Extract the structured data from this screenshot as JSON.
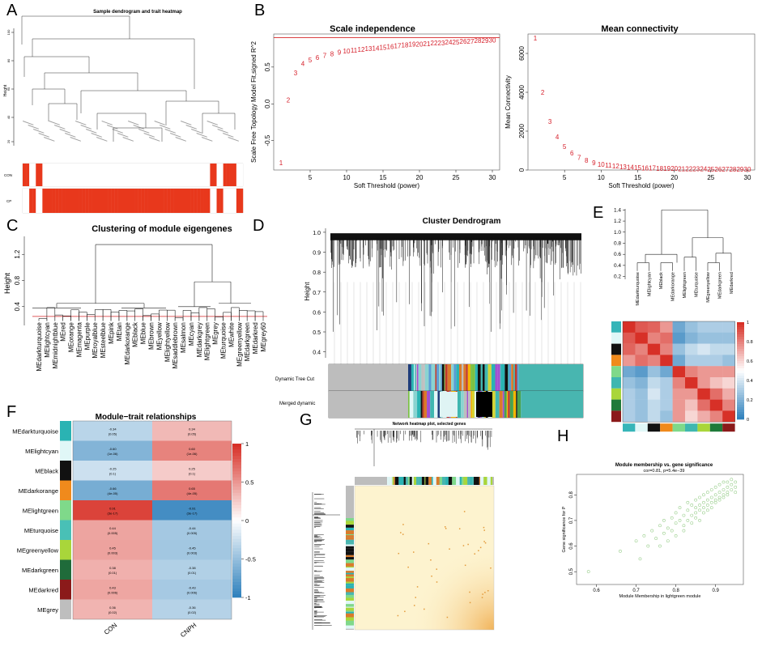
{
  "panels": {
    "A": {
      "letter": "A",
      "title": "Sample dendrogram and trait heatmap",
      "ylabel": "Height",
      "yticks": [
        "100",
        "80",
        "60",
        "40",
        "20"
      ],
      "traits": [
        "CON",
        "CP"
      ],
      "trait_pattern_con": [
        1,
        1,
        0,
        0,
        1,
        1,
        0,
        0,
        0,
        0,
        0,
        0,
        0,
        0,
        0,
        0,
        0,
        0,
        0,
        0,
        0,
        0,
        0,
        0,
        0,
        0,
        0,
        0,
        0,
        0,
        0,
        0,
        0,
        0,
        0,
        0,
        0,
        0,
        0,
        0,
        0,
        0,
        0,
        0,
        0,
        0,
        0,
        0,
        0,
        0,
        0,
        0,
        0,
        0,
        0,
        0,
        0,
        1,
        1,
        0,
        0,
        1,
        1,
        1,
        1,
        0,
        0
      ],
      "colors": {
        "high": "#e8381c",
        "low": "#ffffff"
      }
    },
    "B": {
      "letter": "B",
      "scale_title": "Scale independence",
      "scale_ylabel": "Scale Free Topology Model Fit,signed R^2",
      "conn_title": "Mean connectivity",
      "conn_ylabel": "Mean Connectivity",
      "xlabel": "Soft Threshold (power)",
      "xticks": [
        "5",
        "10",
        "15",
        "20",
        "25",
        "30"
      ],
      "scale_yticks": [
        "0.5",
        "0.0",
        "-0.5"
      ],
      "conn_yticks": [
        "6000",
        "4000",
        "2000",
        "0"
      ]
    },
    "C": {
      "letter": "C",
      "title": "Clustering of module eigengenes",
      "ylabel": "Height",
      "yticks": [
        "1.2",
        "0.8",
        "0.4"
      ],
      "leaves": [
        "MEdarkturquoise",
        "MElightcyan",
        "MEmidnightblue",
        "MEred",
        "MEorange",
        "MEmagenta",
        "MEpurple",
        "MEroyalblue",
        "MEsteelblue",
        "MEpink",
        "MEtan",
        "MEdarkorange",
        "MEblack",
        "MEblue",
        "MEbrown",
        "MEyellow",
        "MElightyellow",
        "MEsaddlebrown",
        "MEsalmon",
        "MEcyan",
        "MEdarkgrey",
        "MElightgreen",
        "MEgrey",
        "MEturquoise",
        "MEwhite",
        "MEgreenyellow",
        "MEdarkgreen",
        "MEdarkred",
        "MEgrey60"
      ]
    },
    "D": {
      "letter": "D",
      "title": "Cluster Dendrogram",
      "ylabel": "Height",
      "yticks": [
        "1.0",
        "0.9",
        "0.8",
        "0.7",
        "0.6",
        "0.5",
        "0.4"
      ],
      "row1": "Dynamic Tree Cut",
      "row2": "Merged dynamic"
    },
    "E": {
      "letter": "E",
      "yticks": [
        "1.4",
        "1.2",
        "1.0",
        "0.8",
        "0.6",
        "0.4",
        "0.2"
      ],
      "leaves": [
        "MEdarkturquoise",
        "MElightcyan",
        "MEblack",
        "MEdarkorange",
        "MElightgreen",
        "MEturquoise",
        "MEgreenyellow",
        "MEdarkgreen",
        "MEdarkred"
      ],
      "legend_ticks": [
        "1",
        "0.8",
        "0.6",
        "0.4",
        "0.2",
        "0"
      ],
      "side_colors": [
        "#36b5b8",
        "#e0f7f7",
        "#111111",
        "#f08a1c",
        "#7fd98a",
        "#3fb7b0",
        "#a9d63a",
        "#1f7a3a",
        "#8b1a1a"
      ]
    },
    "F": {
      "letter": "F",
      "title": "Module−trait relationships",
      "columns": [
        "CON",
        "CNPH"
      ],
      "legend_ticks": [
        "1",
        "0.5",
        "0",
        "-0.5",
        "-1"
      ],
      "rows": [
        {
          "name": "MEdarkturquoise",
          "color": "#2ab3b3",
          "con": "-0.34\n(0.05)",
          "cp": "0.34\n(0.05)",
          "vcon": -0.34,
          "vcp": 0.34
        },
        {
          "name": "MElightcyan",
          "color": "#e0f7f7",
          "con": "-0.60\n(1e-06)",
          "cp": "0.60\n(1e-06)",
          "vcon": -0.6,
          "vcp": 0.6
        },
        {
          "name": "MEblack",
          "color": "#111111",
          "con": "-0.25\n(0.1)",
          "cp": "0.25\n(0.1)",
          "vcon": -0.25,
          "vcp": 0.25
        },
        {
          "name": "MEdarkorange",
          "color": "#f08a1c",
          "con": "-0.66\n(4e-05)",
          "cp": "0.65\n(4e-05)",
          "vcon": -0.66,
          "vcp": 0.65
        },
        {
          "name": "MElightgreen",
          "color": "#7fd98a",
          "con": "0.91\n(3e-17)",
          "cp": "-0.91\n(3e-17)",
          "vcon": 0.91,
          "vcp": -0.91
        },
        {
          "name": "MEturquoise",
          "color": "#49c0b6",
          "con": "0.44\n(0.005)",
          "cp": "-0.44\n(0.005)",
          "vcon": 0.44,
          "vcp": -0.44
        },
        {
          "name": "MEgreenyellow",
          "color": "#a9d63a",
          "con": "0.45\n(0.003)",
          "cp": "-0.45\n(0.003)",
          "vcon": 0.45,
          "vcp": -0.45
        },
        {
          "name": "MEdarkgreen",
          "color": "#1f6b3a",
          "con": "0.38\n(0.01)",
          "cp": "-0.38\n(0.01)",
          "vcon": 0.38,
          "vcp": -0.38
        },
        {
          "name": "MEdarkred",
          "color": "#8b1a1a",
          "con": "0.43\n(0.006)",
          "cp": "-0.43\n(0.006)",
          "vcon": 0.43,
          "vcp": -0.43
        },
        {
          "name": "MEgrey",
          "color": "#bebebe",
          "con": "0.36\n(0.02)",
          "cp": "-0.36\n(0.02)",
          "vcon": 0.36,
          "vcp": -0.36
        }
      ]
    },
    "G": {
      "letter": "G",
      "title": "Network heatmap plot, selected genes"
    },
    "H": {
      "letter": "H",
      "title": "Module membership vs. gene significance",
      "subtitle": "cor=0.81, p=5.4e−39",
      "xlabel": "Module Membership in lightgreen module",
      "ylabel": "Gene significance for P",
      "xticks": [
        "0.6",
        "0.7",
        "0.8",
        "0.9"
      ],
      "yticks": [
        "0.8",
        "0.7",
        "0.6",
        "0.5"
      ]
    }
  },
  "chart_data": [
    {
      "type": "scatter",
      "title": "Scale independence",
      "xlabel": "Soft Threshold (power)",
      "ylabel": "Scale Free Topology Model Fit,signed R^2",
      "x": [
        1,
        2,
        3,
        4,
        5,
        6,
        7,
        8,
        9,
        10,
        11,
        12,
        13,
        14,
        15,
        16,
        17,
        18,
        19,
        20,
        21,
        22,
        23,
        24,
        25,
        26,
        27,
        28,
        29,
        30
      ],
      "y": [
        -0.8,
        0.05,
        0.42,
        0.55,
        0.6,
        0.63,
        0.66,
        0.68,
        0.7,
        0.72,
        0.73,
        0.74,
        0.75,
        0.76,
        0.77,
        0.78,
        0.79,
        0.8,
        0.81,
        0.81,
        0.82,
        0.83,
        0.83,
        0.84,
        0.84,
        0.85,
        0.85,
        0.86,
        0.86,
        0.87
      ],
      "xlim": [
        0,
        31
      ],
      "ylim": [
        -0.9,
        0.95
      ],
      "hline": 0.9,
      "labels_as_points": true
    },
    {
      "type": "scatter",
      "title": "Mean connectivity",
      "xlabel": "Soft Threshold (power)",
      "ylabel": "Mean Connectivity",
      "x": [
        1,
        2,
        3,
        4,
        5,
        6,
        7,
        8,
        9,
        10,
        11,
        12,
        13,
        14,
        15,
        16,
        17,
        18,
        19,
        20,
        21,
        22,
        23,
        24,
        25,
        26,
        27,
        28,
        29,
        30
      ],
      "y": [
        6800,
        4000,
        2500,
        1700,
        1200,
        880,
        650,
        490,
        380,
        300,
        240,
        200,
        170,
        145,
        125,
        110,
        98,
        88,
        80,
        73,
        67,
        62,
        58,
        54,
        51,
        48,
        45,
        43,
        41,
        39
      ],
      "xlim": [
        0,
        31
      ],
      "ylim": [
        0,
        7000
      ],
      "labels_as_points": true
    },
    {
      "type": "scatter",
      "title": "Module membership vs. gene significance",
      "xlabel": "Module Membership in lightgreen module",
      "ylabel": "Gene significance for P",
      "xlim": [
        0.55,
        0.97
      ],
      "ylim": [
        0.45,
        0.88
      ],
      "cor": 0.81,
      "p": "5.4e-39",
      "x": [
        0.58,
        0.66,
        0.7,
        0.71,
        0.72,
        0.73,
        0.74,
        0.75,
        0.76,
        0.76,
        0.77,
        0.77,
        0.78,
        0.78,
        0.79,
        0.79,
        0.8,
        0.8,
        0.8,
        0.81,
        0.81,
        0.82,
        0.82,
        0.82,
        0.83,
        0.83,
        0.83,
        0.84,
        0.84,
        0.84,
        0.85,
        0.85,
        0.85,
        0.85,
        0.86,
        0.86,
        0.86,
        0.86,
        0.87,
        0.87,
        0.87,
        0.87,
        0.88,
        0.88,
        0.88,
        0.88,
        0.89,
        0.89,
        0.89,
        0.89,
        0.9,
        0.9,
        0.9,
        0.9,
        0.91,
        0.91,
        0.91,
        0.91,
        0.92,
        0.92,
        0.92,
        0.92,
        0.93,
        0.93,
        0.93,
        0.93,
        0.94,
        0.94,
        0.94,
        0.95,
        0.95,
        0.95
      ],
      "y": [
        0.5,
        0.58,
        0.62,
        0.55,
        0.64,
        0.6,
        0.66,
        0.63,
        0.68,
        0.6,
        0.65,
        0.7,
        0.67,
        0.62,
        0.71,
        0.66,
        0.69,
        0.73,
        0.64,
        0.7,
        0.75,
        0.68,
        0.72,
        0.66,
        0.74,
        0.7,
        0.77,
        0.72,
        0.76,
        0.69,
        0.75,
        0.71,
        0.78,
        0.73,
        0.74,
        0.79,
        0.7,
        0.76,
        0.77,
        0.73,
        0.8,
        0.75,
        0.78,
        0.74,
        0.81,
        0.76,
        0.79,
        0.75,
        0.82,
        0.77,
        0.8,
        0.77,
        0.83,
        0.78,
        0.81,
        0.78,
        0.84,
        0.79,
        0.82,
        0.8,
        0.85,
        0.79,
        0.83,
        0.81,
        0.85,
        0.8,
        0.84,
        0.82,
        0.86,
        0.83,
        0.85,
        0.81
      ]
    }
  ]
}
